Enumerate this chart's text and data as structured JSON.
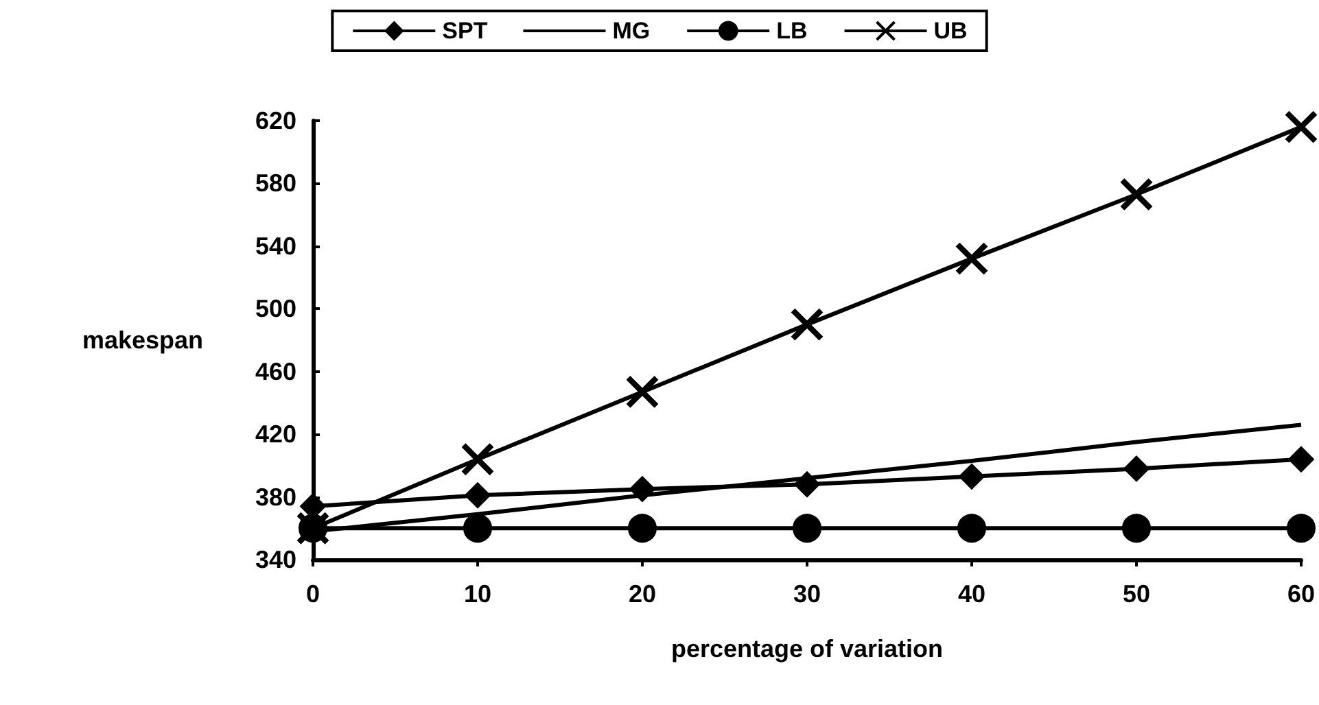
{
  "chart_data": {
    "type": "line",
    "xlabel": "percentage of variation",
    "ylabel": "makespan",
    "x": [
      0,
      10,
      20,
      30,
      40,
      50,
      60
    ],
    "xlim": [
      0,
      60
    ],
    "xticks": [
      0,
      10,
      20,
      30,
      40,
      50,
      60
    ],
    "ylim": [
      340,
      620
    ],
    "yticks": [
      340,
      380,
      420,
      460,
      500,
      540,
      580,
      620
    ],
    "grid": false,
    "legend": "top",
    "series": [
      {
        "name": "SPT",
        "color": "#000000",
        "marker": "diamond",
        "values": [
          374,
          381,
          385,
          388,
          393,
          398,
          404
        ]
      },
      {
        "name": "MG",
        "color": "#000000",
        "marker": "none",
        "values": [
          358,
          369,
          381,
          392,
          403,
          415,
          426
        ]
      },
      {
        "name": "LB",
        "color": "#000000",
        "marker": "circle",
        "values": [
          360,
          360,
          360,
          360,
          360,
          360,
          360
        ]
      },
      {
        "name": "UB",
        "color": "#000000",
        "marker": "cross",
        "values": [
          360,
          404,
          447,
          490,
          532,
          573,
          616
        ]
      }
    ]
  }
}
